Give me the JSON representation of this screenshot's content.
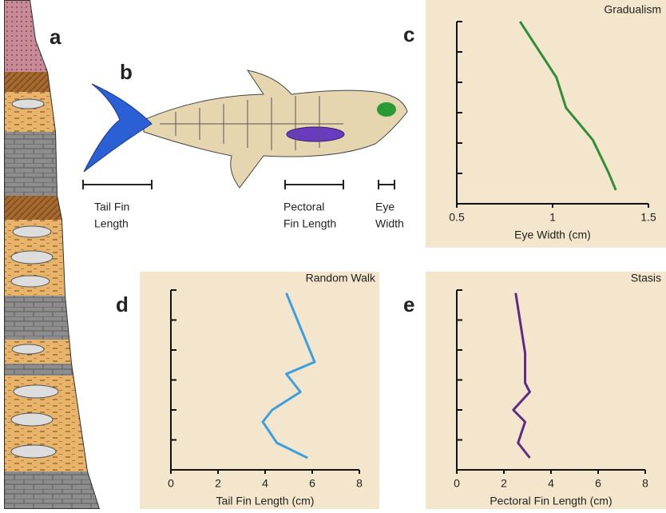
{
  "panel_labels": [
    "a",
    "b",
    "c",
    "d",
    "e"
  ],
  "fish_labels": {
    "tail": [
      "Tail Fin",
      "Length"
    ],
    "pectoral": [
      "Pectoral",
      "Fin Length"
    ],
    "eye": [
      "Eye",
      "Width"
    ]
  },
  "chart_data": [
    {
      "type": "line",
      "title": "Gradualism",
      "x_label": "Eye Width (cm)",
      "color": "#2f8f35",
      "x": [
        0.83,
        1.02,
        1.07,
        1.21,
        1.29,
        1.33
      ],
      "values": [
        6,
        4.16,
        3.16,
        2.1,
        1.05,
        0.45
      ],
      "xlim": [
        0.5,
        1.5
      ],
      "xticks": [
        0.5,
        1,
        1.5
      ],
      "ylim": [
        0,
        6
      ],
      "yticks": [
        0,
        1,
        2,
        3,
        4,
        5,
        6
      ]
    },
    {
      "type": "line",
      "title": "Random Walk",
      "x_label": "Tail Fin Length (cm)",
      "color": "#3b9fe0",
      "x": [
        4.9,
        6.1,
        4.9,
        5.5,
        4.3,
        3.9,
        4.5,
        5.8
      ],
      "values": [
        5.9,
        3.6,
        3.2,
        2.6,
        2.0,
        1.6,
        0.9,
        0.4
      ],
      "xlim": [
        0,
        8
      ],
      "xticks": [
        0,
        2,
        4,
        6,
        8
      ],
      "ylim": [
        0,
        6
      ],
      "yticks": [
        0,
        1,
        2,
        3,
        4,
        5,
        6
      ]
    },
    {
      "type": "line",
      "title": "Stasis",
      "x_label": "Pectoral Fin Length (cm)",
      "color": "#5b2d86",
      "x": [
        2.5,
        2.9,
        2.9,
        3.1,
        2.4,
        2.9,
        2.6,
        3.1
      ],
      "values": [
        5.9,
        3.9,
        2.9,
        2.6,
        2.0,
        1.6,
        0.9,
        0.4
      ],
      "xlim": [
        0,
        8
      ],
      "xticks": [
        0,
        2,
        4,
        6,
        8
      ],
      "ylim": [
        0,
        6
      ],
      "yticks": [
        0,
        1,
        2,
        3,
        4,
        5,
        6
      ]
    }
  ]
}
